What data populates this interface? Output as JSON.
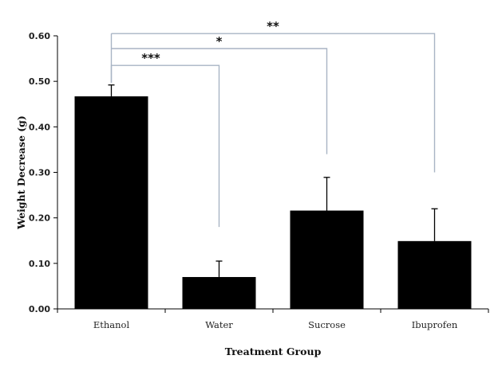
{
  "chart_data": {
    "type": "bar",
    "categories": [
      "Ethanol",
      "Water",
      "Sucrose",
      "Ibuprofen"
    ],
    "values": [
      0.467,
      0.07,
      0.216,
      0.149
    ],
    "errors": [
      0.025,
      0.035,
      0.073,
      0.071
    ],
    "xlabel": "Treatment Group",
    "ylabel": "Weight Decrease (g)",
    "ylim": [
      0,
      0.6
    ],
    "yticks": [
      0.0,
      0.1,
      0.2,
      0.3,
      0.4,
      0.5,
      0.6
    ],
    "ytick_labels": [
      "0.00",
      "0.10",
      "0.20",
      "0.30",
      "0.40",
      "0.50",
      "0.60"
    ],
    "grid": false,
    "bar_color": "#000000",
    "bracket_color": "#a8b4c4",
    "significance": [
      {
        "from": "Ethanol",
        "to": "Water",
        "label": "***",
        "level": 0.535,
        "end": 0.18
      },
      {
        "from": "Ethanol",
        "to": "Sucrose",
        "label": "*",
        "level": 0.572,
        "end": 0.34
      },
      {
        "from": "Ethanol",
        "to": "Ibuprofen",
        "label": "**",
        "level": 0.605,
        "end": 0.3
      }
    ]
  }
}
